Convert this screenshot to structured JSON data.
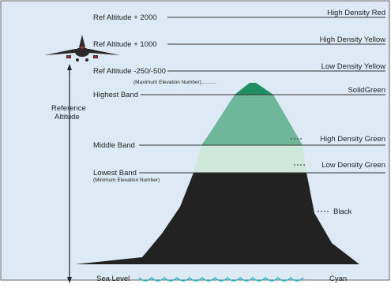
{
  "levels": {
    "ref_plus_2000": "Ref Altitude + 2000",
    "ref_plus_1000": "Ref Altitude + 1000",
    "ref_minus_250_500": "Ref Altitude -250/-500",
    "max_elevation": "(Maximum Elevation Number)..........",
    "highest_band": "Highest Band",
    "middle_band": "Middle Band",
    "lowest_band": "Lowest Band",
    "min_elevation": "(Minimum Elevation Number)",
    "sea_level": "Sea Level"
  },
  "reference_altitude": {
    "line1": "Reference",
    "line2": "Altitude"
  },
  "legend": {
    "high_density_red": "High Density Red",
    "high_density_yellow": "High Density Yellow",
    "low_density_yellow": "Low Density Yellow",
    "solid_green": "SolidGreen",
    "high_density_green": "High Density Green",
    "low_density_green": "Low Density Green",
    "black": "Black",
    "cyan": "Cyan"
  },
  "colors": {
    "background": "#dde9f4",
    "solid_green": "#1f8f63",
    "high_density_green": "#6fb79a",
    "low_density_green": "#cfe8dc",
    "terrain_black": "#222222",
    "cyan": "#2bb7c7",
    "airplane": "#2a2a2a",
    "airplane_lights": "#d62828"
  }
}
